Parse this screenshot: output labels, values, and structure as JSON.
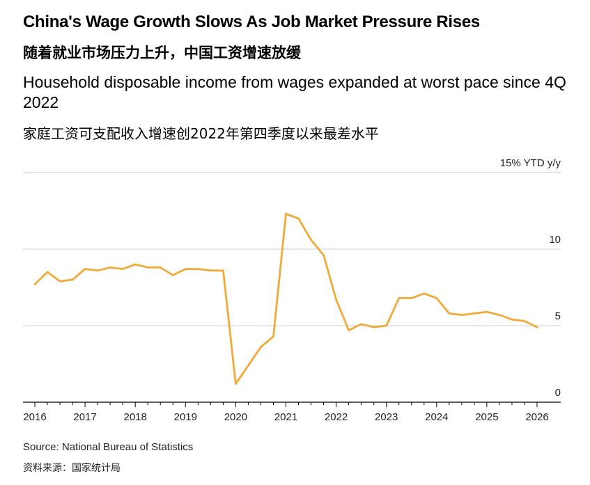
{
  "header": {
    "title": "China's Wage Growth Slows As Job Market Pressure Rises",
    "title_cn": "随着就业市场压力上升，中国工资增速放缓",
    "subtitle": "Household disposable income from wages expanded at worst pace since 4Q 2022",
    "subtitle_cn": "家庭工资可支配收入增速创2022年第四季度以来最差水平"
  },
  "footer": {
    "source": "Source: National Bureau of Statistics",
    "source_cn": "资料来源：国家统计局"
  },
  "colors": {
    "line": "#f2a93b",
    "grid": "#cccccc",
    "axis": "#000000"
  },
  "chart_data": {
    "type": "line",
    "title": "",
    "xlabel": "",
    "ylabel": "15% YTD y/y",
    "ylim": [
      0,
      15
    ],
    "xlim": [
      2016,
      2026
    ],
    "y_ticks": [
      {
        "value": 15,
        "label": "15% YTD y/y"
      },
      {
        "value": 10,
        "label": "10"
      },
      {
        "value": 5,
        "label": "5"
      },
      {
        "value": 0,
        "label": "0"
      }
    ],
    "x_ticks": [
      2016,
      2017,
      2018,
      2019,
      2020,
      2021,
      2022,
      2023,
      2024,
      2025,
      2026
    ],
    "x_tick_labels": [
      "2016",
      "2017",
      "2018",
      "2019",
      "2020",
      "2021",
      "2022",
      "2023",
      "2024",
      "2025",
      "2026"
    ],
    "grid": true,
    "series": [
      {
        "name": "Household disposable income from wages, YTD y/y %",
        "x": [
          2016.0,
          2016.25,
          2016.5,
          2016.75,
          2017.0,
          2017.25,
          2017.5,
          2017.75,
          2018.0,
          2018.25,
          2018.5,
          2018.75,
          2019.0,
          2019.25,
          2019.5,
          2019.75,
          2020.0,
          2020.25,
          2020.5,
          2020.75,
          2021.0,
          2021.25,
          2021.5,
          2021.75,
          2022.0,
          2022.25,
          2022.5,
          2022.75,
          2023.0,
          2023.25,
          2023.5,
          2023.75,
          2024.0,
          2024.25,
          2024.5,
          2024.75,
          2025.0,
          2025.25,
          2025.5,
          2025.75,
          2026.0
        ],
        "values": [
          7.7,
          8.5,
          7.9,
          8.0,
          8.7,
          8.6,
          8.8,
          8.7,
          9.0,
          8.8,
          8.8,
          8.3,
          8.7,
          8.7,
          8.6,
          8.6,
          1.2,
          2.4,
          3.6,
          4.3,
          12.3,
          12.0,
          10.6,
          9.6,
          6.7,
          4.7,
          5.1,
          4.9,
          5.0,
          6.8,
          6.8,
          7.1,
          6.8,
          5.8,
          5.7,
          5.8,
          5.9,
          5.7,
          5.4,
          5.3,
          4.9
        ]
      }
    ]
  }
}
